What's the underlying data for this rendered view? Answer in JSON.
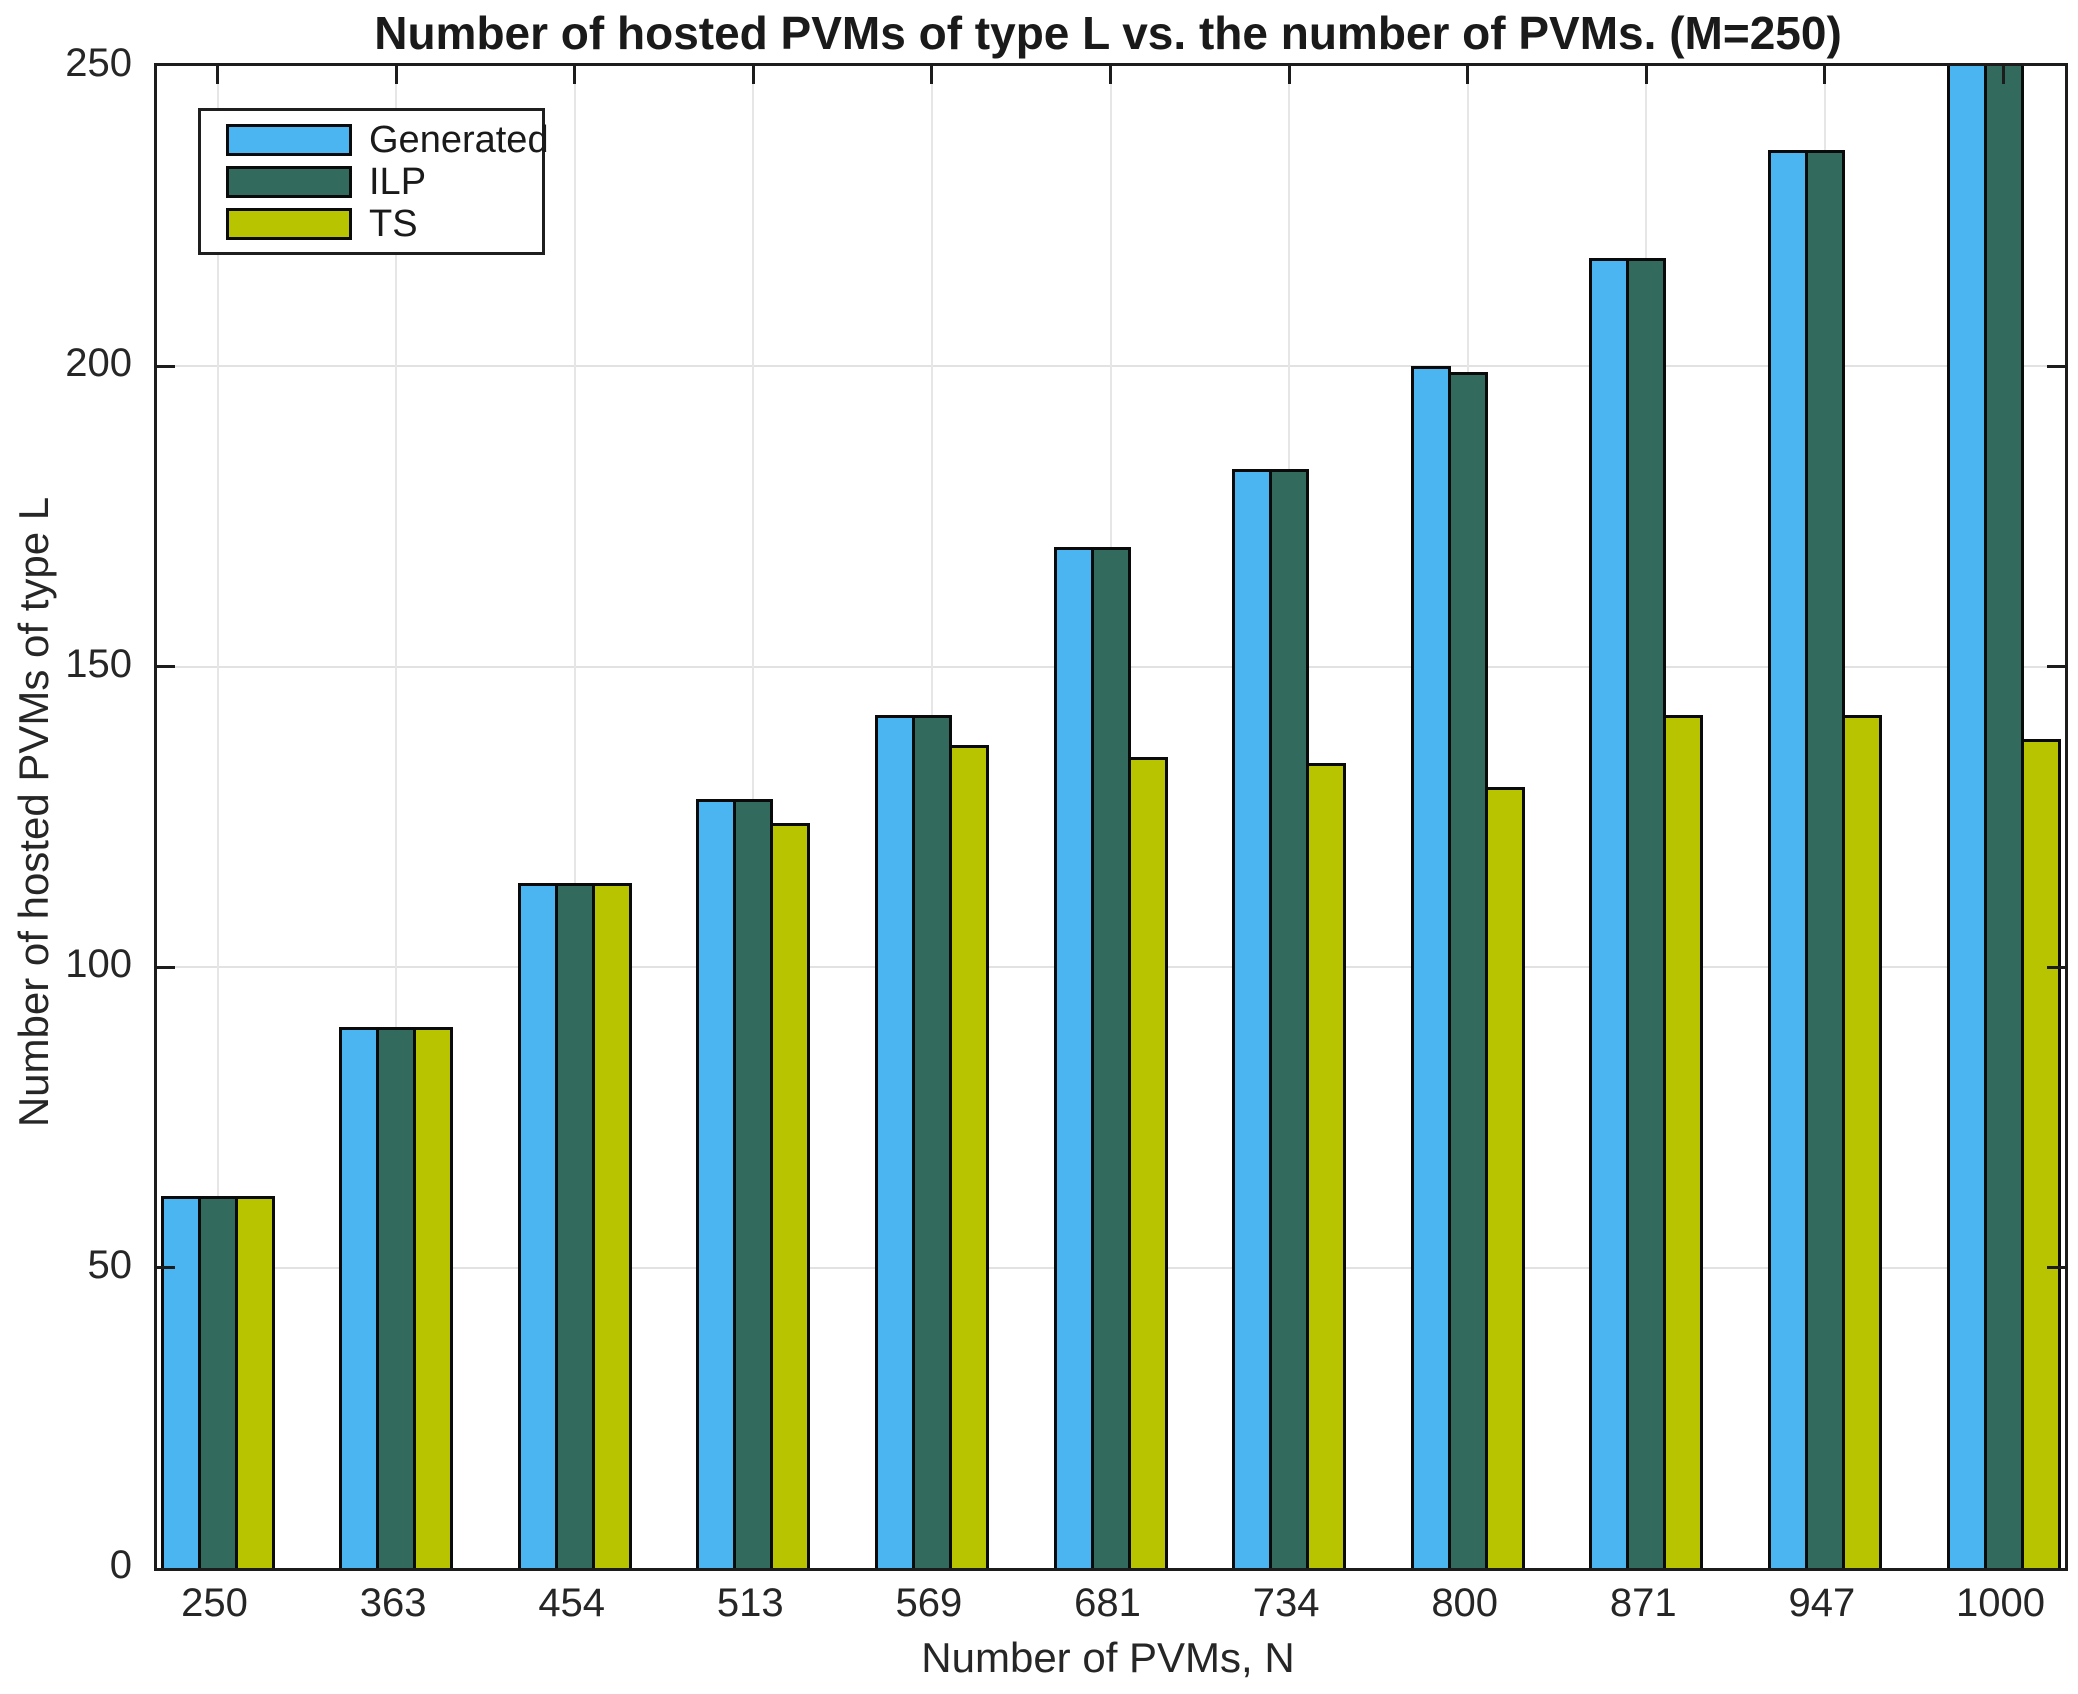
{
  "chart_data": {
    "type": "bar",
    "title": "Number of hosted PVMs of type L vs. the number of PVMs. (M=250)",
    "xlabel": "Number of PVMs, N",
    "ylabel": "Number of hosted PVMs of type L",
    "categories": [
      "250",
      "363",
      "454",
      "513",
      "569",
      "681",
      "734",
      "800",
      "871",
      "947",
      "1000"
    ],
    "series": [
      {
        "name": "Generated",
        "color": "#4ab5f0",
        "values": [
          62,
          90,
          114,
          128,
          142,
          170,
          183,
          200,
          218,
          236,
          250
        ]
      },
      {
        "name": "ILP",
        "color": "#336a5e",
        "values": [
          62,
          90,
          114,
          128,
          142,
          170,
          183,
          199,
          218,
          236,
          250
        ]
      },
      {
        "name": "TS",
        "color": "#b9c400",
        "values": [
          62,
          90,
          114,
          124,
          137,
          135,
          134,
          130,
          142,
          142,
          138
        ]
      }
    ],
    "ylim": [
      0,
      250
    ],
    "y_ticks": [
      0,
      50,
      100,
      150,
      200,
      250
    ],
    "grid": true,
    "legend_position": "top-left-inside",
    "note": "Generated and ILP bars at N=1000 reach the top axis line (clipped at the y-limit of 250)"
  },
  "palette": {
    "axis_color": "#1c1c1c",
    "grid_color": "#e2e2e2",
    "text_color": "#262626",
    "bar_border_color": "#0a0a0a",
    "background": "#ffffff"
  }
}
